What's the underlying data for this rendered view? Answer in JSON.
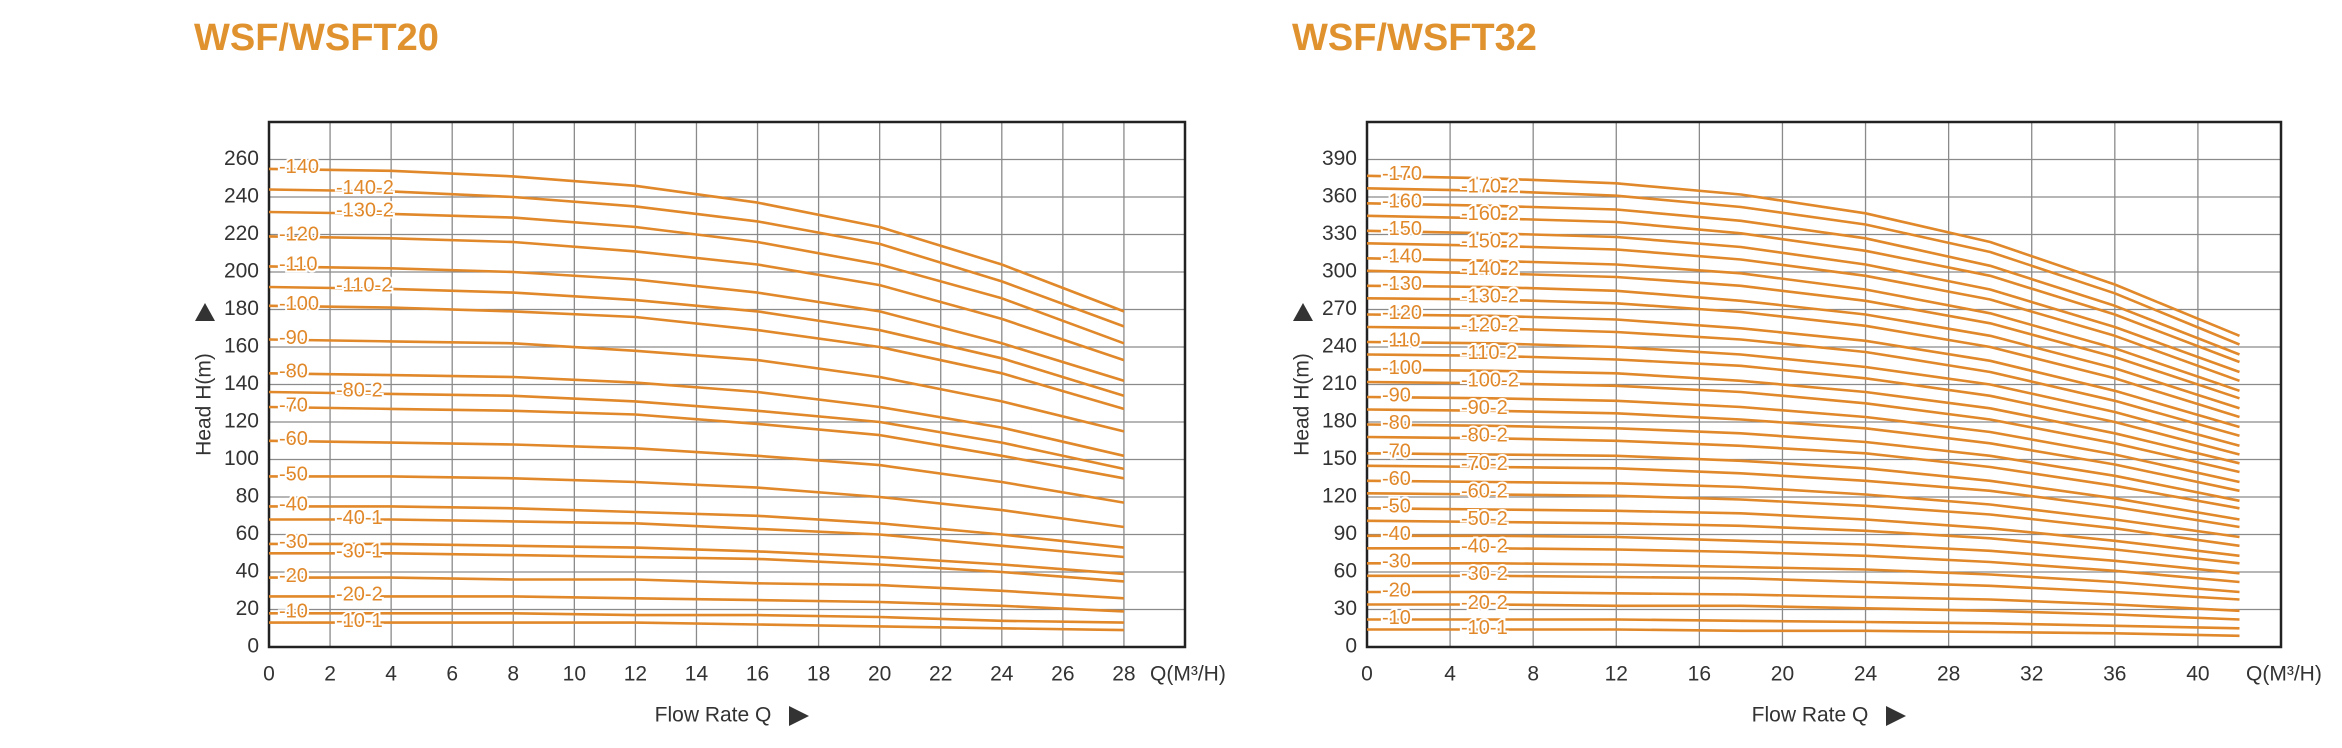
{
  "chart_data": [
    {
      "type": "line",
      "title": "WSF/WSFT20",
      "x_label": "Flow Rate Q",
      "y_label": "Head H(m)",
      "x_unit_label": "Q(M³/H)",
      "color": "#e0882a",
      "grid": true,
      "xlim": [
        0,
        30
      ],
      "ylim": [
        0,
        280
      ],
      "xticks": [
        0,
        2,
        4,
        6,
        8,
        10,
        12,
        14,
        16,
        18,
        20,
        22,
        24,
        26,
        28
      ],
      "yticks": [
        0,
        20,
        40,
        60,
        80,
        100,
        120,
        140,
        160,
        180,
        200,
        220,
        240,
        260
      ],
      "x": [
        0,
        4,
        8,
        12,
        16,
        20,
        24,
        28
      ],
      "series": [
        {
          "name": "-140",
          "values": [
            255,
            254,
            251,
            246,
            237,
            224,
            204,
            179
          ]
        },
        {
          "name": "-140-2",
          "values": [
            244,
            243,
            240,
            235,
            227,
            215,
            195,
            171
          ]
        },
        {
          "name": "-130-2",
          "values": [
            232,
            231,
            229,
            224,
            216,
            204,
            186,
            162
          ]
        },
        {
          "name": "-120",
          "values": [
            219,
            218,
            216,
            211,
            204,
            193,
            175,
            153
          ]
        },
        {
          "name": "-110",
          "values": [
            203,
            202,
            200,
            196,
            189,
            179,
            162,
            142
          ]
        },
        {
          "name": "-110-2",
          "values": [
            192,
            191,
            189,
            185,
            179,
            169,
            154,
            134
          ]
        },
        {
          "name": "-100",
          "values": [
            182,
            181,
            179,
            176,
            169,
            160,
            146,
            127
          ]
        },
        {
          "name": "-90",
          "values": [
            164,
            163,
            162,
            158,
            153,
            144,
            131,
            115
          ]
        },
        {
          "name": "-80",
          "values": [
            146,
            145,
            144,
            141,
            136,
            128,
            117,
            102
          ]
        },
        {
          "name": "-80-2",
          "values": [
            136,
            135,
            134,
            131,
            126,
            120,
            109,
            95
          ]
        },
        {
          "name": "-70",
          "values": [
            128,
            127,
            126,
            124,
            119,
            113,
            102,
            90
          ]
        },
        {
          "name": "-60",
          "values": [
            110,
            109,
            108,
            106,
            102,
            97,
            88,
            77
          ]
        },
        {
          "name": "-50",
          "values": [
            91,
            91,
            90,
            88,
            85,
            80,
            73,
            64
          ]
        },
        {
          "name": "-40",
          "values": [
            75,
            75,
            74,
            72,
            70,
            66,
            60,
            53
          ]
        },
        {
          "name": "-40-1",
          "values": [
            68,
            68,
            67,
            66,
            63,
            60,
            54,
            48
          ]
        },
        {
          "name": "-30",
          "values": [
            55,
            55,
            54,
            53,
            51,
            48,
            44,
            39
          ]
        },
        {
          "name": "-30-1",
          "values": [
            50,
            50,
            49,
            48,
            47,
            44,
            40,
            35
          ]
        },
        {
          "name": "-20",
          "values": [
            37,
            37,
            36,
            36,
            34,
            33,
            30,
            26
          ]
        },
        {
          "name": "-20-2",
          "values": [
            27,
            27,
            27,
            26,
            25,
            24,
            22,
            19
          ]
        },
        {
          "name": "-10",
          "values": [
            18,
            18,
            18,
            17,
            17,
            16,
            14,
            13
          ]
        },
        {
          "name": "-10-1",
          "values": [
            13,
            13,
            13,
            13,
            12,
            11,
            10,
            9
          ]
        }
      ]
    },
    {
      "type": "line",
      "title": "WSF/WSFT32",
      "x_label": "Flow Rate Q",
      "y_label": "Head H(m)",
      "x_unit_label": "Q(M³/H)",
      "color": "#e0882a",
      "grid": true,
      "xlim": [
        0,
        44
      ],
      "ylim": [
        0,
        420
      ],
      "xticks": [
        0,
        4,
        8,
        12,
        16,
        20,
        24,
        28,
        32,
        36,
        40
      ],
      "yticks": [
        0,
        30,
        60,
        90,
        120,
        150,
        180,
        210,
        240,
        270,
        300,
        330,
        360,
        390
      ],
      "x": [
        0,
        6,
        12,
        18,
        24,
        30,
        36,
        42
      ],
      "series": [
        {
          "name": "-170",
          "values": [
            377,
            375,
            371,
            362,
            347,
            324,
            290,
            249
          ]
        },
        {
          "name": "-170-2",
          "values": [
            367,
            365,
            361,
            352,
            338,
            316,
            283,
            242
          ]
        },
        {
          "name": "-160",
          "values": [
            355,
            353,
            350,
            341,
            327,
            305,
            273,
            234
          ]
        },
        {
          "name": "-160-2",
          "values": [
            345,
            343,
            340,
            331,
            317,
            297,
            266,
            228
          ]
        },
        {
          "name": "-150",
          "values": [
            333,
            331,
            328,
            320,
            306,
            286,
            256,
            220
          ]
        },
        {
          "name": "-150-2",
          "values": [
            323,
            321,
            318,
            310,
            297,
            278,
            249,
            213
          ]
        },
        {
          "name": "-140",
          "values": [
            311,
            309,
            306,
            299,
            286,
            267,
            239,
            205
          ]
        },
        {
          "name": "-140-2",
          "values": [
            301,
            299,
            296,
            289,
            277,
            259,
            232,
            199
          ]
        },
        {
          "name": "-130",
          "values": [
            289,
            288,
            285,
            277,
            266,
            249,
            223,
            191
          ]
        },
        {
          "name": "-130-2",
          "values": [
            279,
            278,
            275,
            268,
            257,
            240,
            215,
            184
          ]
        },
        {
          "name": "-120",
          "values": [
            266,
            265,
            262,
            255,
            245,
            229,
            205,
            176
          ]
        },
        {
          "name": "-120-2",
          "values": [
            256,
            255,
            252,
            246,
            236,
            220,
            197,
            169
          ]
        },
        {
          "name": "-110",
          "values": [
            244,
            243,
            240,
            234,
            224,
            210,
            188,
            161
          ]
        },
        {
          "name": "-110-2",
          "values": [
            234,
            233,
            230,
            225,
            215,
            201,
            180,
            154
          ]
        },
        {
          "name": "-100",
          "values": [
            222,
            221,
            219,
            213,
            204,
            191,
            171,
            147
          ]
        },
        {
          "name": "-100-2",
          "values": [
            212,
            211,
            209,
            204,
            195,
            182,
            163,
            140
          ]
        },
        {
          "name": "-90",
          "values": [
            200,
            199,
            197,
            192,
            184,
            172,
            154,
            132
          ]
        },
        {
          "name": "-90-2",
          "values": [
            190,
            189,
            187,
            182,
            175,
            163,
            146,
            125
          ]
        },
        {
          "name": "-80",
          "values": [
            178,
            177,
            175,
            171,
            164,
            153,
            137,
            117
          ]
        },
        {
          "name": "-80-2",
          "values": [
            168,
            167,
            165,
            161,
            155,
            144,
            129,
            111
          ]
        },
        {
          "name": "-70",
          "values": [
            155,
            154,
            153,
            149,
            143,
            133,
            119,
            102
          ]
        },
        {
          "name": "-70-2",
          "values": [
            145,
            144,
            143,
            139,
            133,
            125,
            112,
            96
          ]
        },
        {
          "name": "-60",
          "values": [
            133,
            132,
            131,
            128,
            122,
            114,
            102,
            88
          ]
        },
        {
          "name": "-60-2",
          "values": [
            123,
            122,
            121,
            118,
            113,
            106,
            95,
            81
          ]
        },
        {
          "name": "-50",
          "values": [
            111,
            110,
            109,
            107,
            102,
            95,
            85,
            73
          ]
        },
        {
          "name": "-50-2",
          "values": [
            101,
            100,
            99,
            97,
            93,
            87,
            78,
            67
          ]
        },
        {
          "name": "-40",
          "values": [
            89,
            89,
            88,
            85,
            82,
            77,
            69,
            59
          ]
        },
        {
          "name": "-40-2",
          "values": [
            79,
            79,
            78,
            76,
            73,
            68,
            61,
            52
          ]
        },
        {
          "name": "-30",
          "values": [
            67,
            67,
            66,
            64,
            62,
            58,
            52,
            44
          ]
        },
        {
          "name": "-30-2",
          "values": [
            57,
            57,
            56,
            55,
            52,
            49,
            44,
            38
          ]
        },
        {
          "name": "-20",
          "values": [
            44,
            44,
            43,
            42,
            40,
            38,
            34,
            29
          ]
        },
        {
          "name": "-20-2",
          "values": [
            34,
            34,
            33,
            33,
            31,
            29,
            26,
            22
          ]
        },
        {
          "name": "-10",
          "values": [
            22,
            22,
            22,
            21,
            20,
            19,
            17,
            15
          ]
        },
        {
          "name": "-10-1",
          "values": [
            14,
            14,
            14,
            13,
            13,
            12,
            11,
            9
          ]
        }
      ]
    }
  ]
}
